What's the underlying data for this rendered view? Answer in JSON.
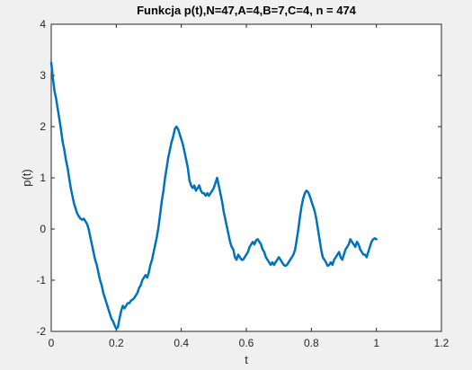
{
  "figure": {
    "background": "#f0f0f0",
    "axes_background": "#ffffff",
    "axis_color": "#262626",
    "line_color": "#0072bd"
  },
  "chart_data": {
    "type": "line",
    "title": "Funkcja p(t),N=47,A=4,B=7,C=4, n = 474",
    "xlabel": "t",
    "ylabel": "p(t)",
    "xlim": [
      0,
      1.2
    ],
    "ylim": [
      -2,
      4
    ],
    "xticks": [
      0,
      0.2,
      0.4,
      0.6,
      0.8,
      1,
      1.2
    ],
    "xtick_labels": [
      "0",
      "0.2",
      "0.4",
      "0.6",
      "0.8",
      "1",
      "1.2"
    ],
    "yticks": [
      -2,
      -1,
      0,
      1,
      2,
      3,
      4
    ],
    "ytick_labels": [
      "-2",
      "-1",
      "0",
      "1",
      "2",
      "3",
      "4"
    ],
    "grid": false,
    "series": [
      {
        "x": [
          0,
          0.005,
          0.01,
          0.015,
          0.02,
          0.025,
          0.03,
          0.035,
          0.04,
          0.045,
          0.05,
          0.055,
          0.06,
          0.065,
          0.07,
          0.075,
          0.08,
          0.085,
          0.09,
          0.095,
          0.1,
          0.105,
          0.11,
          0.115,
          0.12,
          0.125,
          0.13,
          0.135,
          0.14,
          0.145,
          0.15,
          0.155,
          0.16,
          0.165,
          0.17,
          0.175,
          0.18,
          0.185,
          0.19,
          0.195,
          0.2,
          0.205,
          0.21,
          0.215,
          0.22,
          0.225,
          0.23,
          0.235,
          0.24,
          0.245,
          0.25,
          0.255,
          0.26,
          0.265,
          0.27,
          0.275,
          0.28,
          0.285,
          0.29,
          0.295,
          0.3,
          0.305,
          0.31,
          0.315,
          0.32,
          0.325,
          0.33,
          0.335,
          0.34,
          0.345,
          0.35,
          0.355,
          0.36,
          0.365,
          0.37,
          0.375,
          0.38,
          0.385,
          0.39,
          0.395,
          0.4,
          0.405,
          0.41,
          0.415,
          0.42,
          0.425,
          0.43,
          0.435,
          0.44,
          0.445,
          0.45,
          0.455,
          0.46,
          0.465,
          0.47,
          0.475,
          0.48,
          0.485,
          0.49,
          0.495,
          0.5,
          0.505,
          0.51,
          0.515,
          0.52,
          0.525,
          0.53,
          0.535,
          0.54,
          0.545,
          0.55,
          0.555,
          0.56,
          0.565,
          0.57,
          0.575,
          0.58,
          0.585,
          0.59,
          0.595,
          0.6,
          0.605,
          0.61,
          0.615,
          0.62,
          0.625,
          0.63,
          0.635,
          0.64,
          0.645,
          0.65,
          0.655,
          0.66,
          0.665,
          0.67,
          0.675,
          0.68,
          0.685,
          0.69,
          0.695,
          0.7,
          0.705,
          0.71,
          0.715,
          0.72,
          0.725,
          0.73,
          0.735,
          0.74,
          0.745,
          0.75,
          0.755,
          0.76,
          0.765,
          0.77,
          0.775,
          0.78,
          0.785,
          0.79,
          0.795,
          0.8,
          0.805,
          0.81,
          0.815,
          0.82,
          0.825,
          0.83,
          0.835,
          0.84,
          0.845,
          0.85,
          0.855,
          0.86,
          0.865,
          0.87,
          0.875,
          0.88,
          0.885,
          0.89,
          0.895,
          0.9,
          0.905,
          0.91,
          0.915,
          0.92,
          0.925,
          0.93,
          0.935,
          0.94,
          0.945,
          0.95,
          0.955,
          0.96,
          0.965,
          0.97,
          0.975,
          0.98,
          0.985,
          0.99,
          0.995,
          1.0
        ],
        "y": [
          3.25,
          2.95,
          2.7,
          2.55,
          2.35,
          2.15,
          1.95,
          1.7,
          1.55,
          1.35,
          1.2,
          1.0,
          0.8,
          0.65,
          0.5,
          0.4,
          0.3,
          0.25,
          0.2,
          0.18,
          0.2,
          0.15,
          0.1,
          0.0,
          -0.15,
          -0.3,
          -0.45,
          -0.6,
          -0.7,
          -0.85,
          -1.0,
          -1.1,
          -1.25,
          -1.35,
          -1.45,
          -1.55,
          -1.65,
          -1.75,
          -1.8,
          -1.88,
          -1.95,
          -1.92,
          -1.75,
          -1.6,
          -1.5,
          -1.55,
          -1.5,
          -1.45,
          -1.45,
          -1.4,
          -1.38,
          -1.35,
          -1.3,
          -1.25,
          -1.15,
          -1.1,
          -1.0,
          -0.95,
          -0.9,
          -0.95,
          -0.85,
          -0.7,
          -0.6,
          -0.45,
          -0.3,
          -0.15,
          0.05,
          0.3,
          0.55,
          0.75,
          1.0,
          1.2,
          1.4,
          1.55,
          1.7,
          1.8,
          1.95,
          2.0,
          1.95,
          1.85,
          1.75,
          1.65,
          1.5,
          1.35,
          1.2,
          0.95,
          0.85,
          0.8,
          0.85,
          0.75,
          0.8,
          0.85,
          0.75,
          0.7,
          0.7,
          0.65,
          0.7,
          0.65,
          0.7,
          0.75,
          0.8,
          0.9,
          1.0,
          0.85,
          0.7,
          0.55,
          0.35,
          0.2,
          0.05,
          -0.1,
          -0.25,
          -0.35,
          -0.4,
          -0.55,
          -0.6,
          -0.5,
          -0.55,
          -0.6,
          -0.6,
          -0.55,
          -0.5,
          -0.45,
          -0.35,
          -0.3,
          -0.25,
          -0.3,
          -0.22,
          -0.2,
          -0.25,
          -0.3,
          -0.4,
          -0.45,
          -0.55,
          -0.6,
          -0.65,
          -0.7,
          -0.65,
          -0.7,
          -0.65,
          -0.6,
          -0.55,
          -0.6,
          -0.65,
          -0.7,
          -0.72,
          -0.7,
          -0.65,
          -0.6,
          -0.55,
          -0.5,
          -0.4,
          -0.2,
          0.0,
          0.25,
          0.45,
          0.6,
          0.7,
          0.75,
          0.72,
          0.65,
          0.55,
          0.45,
          0.35,
          0.2,
          0.0,
          -0.2,
          -0.4,
          -0.55,
          -0.6,
          -0.65,
          -0.72,
          -0.7,
          -0.65,
          -0.7,
          -0.6,
          -0.55,
          -0.5,
          -0.45,
          -0.55,
          -0.6,
          -0.5,
          -0.4,
          -0.35,
          -0.3,
          -0.2,
          -0.25,
          -0.3,
          -0.35,
          -0.25,
          -0.3,
          -0.4,
          -0.45,
          -0.5,
          -0.5,
          -0.55,
          -0.45,
          -0.35,
          -0.25,
          -0.2,
          -0.18,
          -0.2
        ]
      }
    ]
  }
}
